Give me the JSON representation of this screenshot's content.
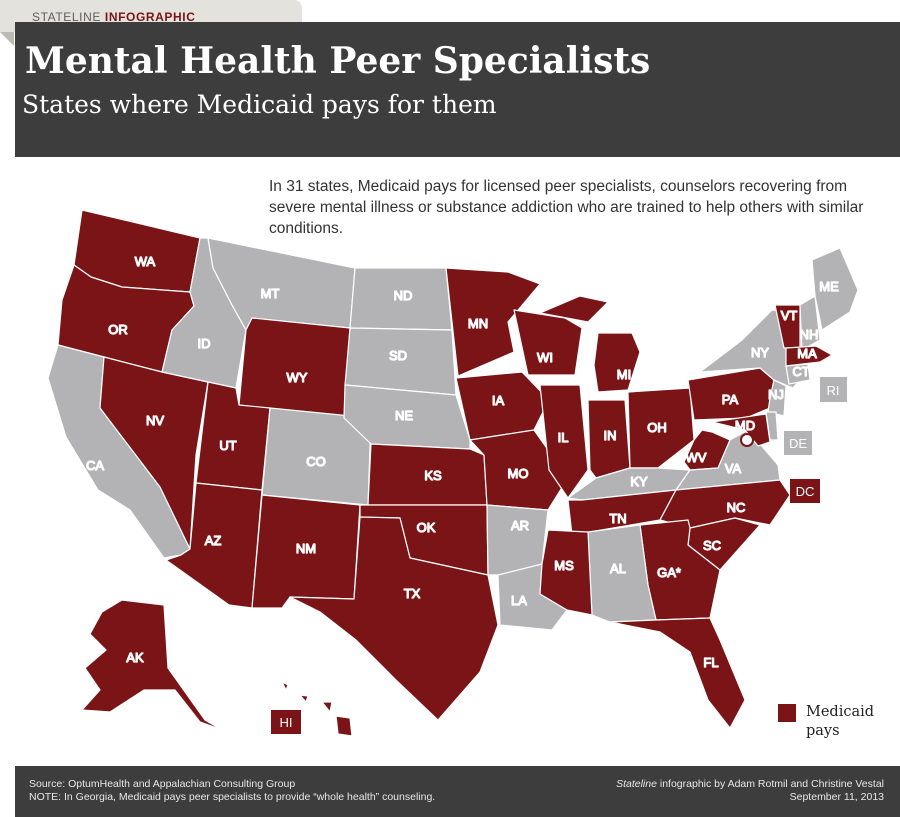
{
  "brand": {
    "prefix": "STATELINE",
    "suffix": "INFOGRAPHIC"
  },
  "title": "Mental Health Peer Specialists",
  "subtitle": "States where Medicaid pays for them",
  "intro": "In 31 states, Medicaid pays for licensed peer specialists, counselors recovering from severe mental illness or substance addiction who are trained to help others with similar conditions.",
  "colors": {
    "medicaid_pays": "#7a1417",
    "other": "#b3b3b5",
    "border": "#ffffff",
    "header": "#3d3d3d"
  },
  "states": {
    "WA": "medicaid",
    "OR": "medicaid",
    "CA": "other",
    "NV": "medicaid",
    "ID": "other",
    "MT": "other",
    "WY": "medicaid",
    "UT": "medicaid",
    "AZ": "medicaid",
    "CO": "other",
    "NM": "medicaid",
    "ND": "other",
    "SD": "other",
    "NE": "other",
    "KS": "medicaid",
    "OK": "medicaid",
    "TX": "medicaid",
    "MN": "medicaid",
    "IA": "medicaid",
    "MO": "medicaid",
    "AR": "other",
    "LA": "other",
    "WI": "medicaid",
    "IL": "medicaid",
    "MI": "medicaid",
    "IN": "medicaid",
    "OH": "medicaid",
    "KY": "other",
    "TN": "medicaid",
    "MS": "medicaid",
    "AL": "other",
    "GA*": "medicaid",
    "FL": "medicaid",
    "SC": "medicaid",
    "NC": "medicaid",
    "VA": "other",
    "WV": "medicaid",
    "PA": "medicaid",
    "NY": "other",
    "VT": "medicaid",
    "NH": "other",
    "ME": "other",
    "MA": "medicaid",
    "CT": "other",
    "RI": "other",
    "NJ": "other",
    "DE": "other",
    "MD": "medicaid",
    "DC": "medicaid",
    "AK": "medicaid",
    "HI": "medicaid"
  },
  "legend": {
    "label": "Medicaid pays"
  },
  "footer": {
    "source": "Source: OptumHealth and Appalachian Consulting Group",
    "note": "NOTE: In Georgia, Medicaid pays peer specialists to provide “whole health” counseling.",
    "credit_publication": "Stateline",
    "credit_rest": " infographic by Adam Rotmil and Christine Vestal",
    "date": "September 11, 2013"
  }
}
